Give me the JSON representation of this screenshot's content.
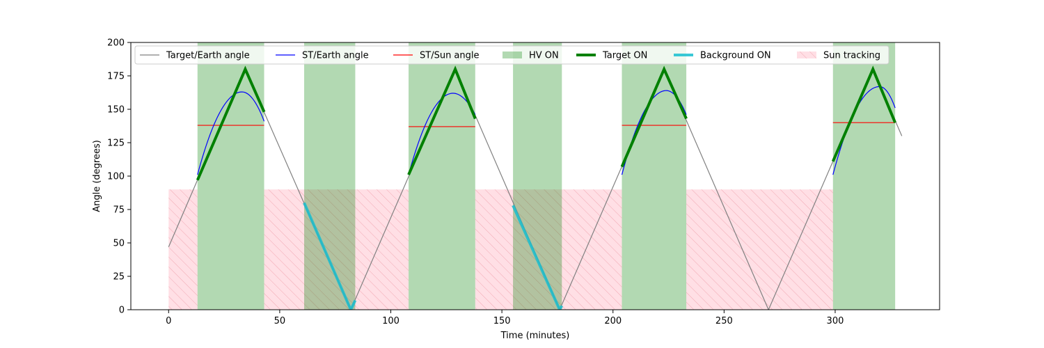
{
  "chart_data": {
    "type": "line",
    "title": "",
    "xlabel": "Time (minutes)",
    "ylabel": "Angle (degrees)",
    "xlim": [
      -17,
      347
    ],
    "ylim": [
      0,
      200
    ],
    "xticks": [
      0,
      50,
      100,
      150,
      200,
      250,
      300
    ],
    "yticks": [
      0,
      25,
      50,
      75,
      100,
      125,
      150,
      175,
      200
    ],
    "grid": false,
    "legend_position": "top",
    "legend": [
      {
        "key": "target_earth",
        "label": "Target/Earth angle",
        "kind": "line",
        "color": "#808080"
      },
      {
        "key": "st_earth",
        "label": "ST/Earth angle",
        "kind": "line",
        "color": "#0000ff"
      },
      {
        "key": "st_sun",
        "label": "ST/Sun angle",
        "kind": "line",
        "color": "#ff0000"
      },
      {
        "key": "hv_on",
        "label": "HV ON",
        "kind": "patch",
        "color": "#008000"
      },
      {
        "key": "target_on",
        "label": "Target ON",
        "kind": "thickline",
        "color": "#008000"
      },
      {
        "key": "background_on",
        "label": "Background ON",
        "kind": "thickline",
        "color": "#17becf"
      },
      {
        "key": "sun_tracking",
        "label": "Sun tracking",
        "kind": "hatch",
        "color": "#ffc0cb"
      }
    ],
    "hv_on_intervals": [
      [
        13,
        43
      ],
      [
        61,
        84
      ],
      [
        108,
        138
      ],
      [
        155,
        177
      ],
      [
        204,
        233
      ],
      [
        299,
        327
      ]
    ],
    "sun_tracking_intervals": [
      [
        0,
        13
      ],
      [
        43,
        108
      ],
      [
        138,
        204
      ],
      [
        233,
        299
      ]
    ],
    "sun_tracking_level": 90,
    "target_earth": {
      "x": [
        0,
        34.5,
        82,
        129,
        176,
        223,
        270,
        317,
        330
      ],
      "y": [
        47,
        180,
        0,
        180,
        0,
        180,
        0,
        180,
        130
      ]
    },
    "target_on_segments": [
      {
        "x": [
          13,
          34.5,
          43
        ],
        "y": [
          97,
          180,
          148
        ]
      },
      {
        "x": [
          108,
          129,
          138
        ],
        "y": [
          101,
          180,
          143
        ]
      },
      {
        "x": [
          204,
          223,
          233
        ],
        "y": [
          107,
          180,
          143
        ]
      },
      {
        "x": [
          299,
          317,
          327
        ],
        "y": [
          111,
          180,
          140
        ]
      }
    ],
    "background_on_segments": [
      {
        "x": [
          61,
          82,
          84
        ],
        "y": [
          80,
          0,
          7
        ]
      },
      {
        "x": [
          155,
          176,
          177
        ],
        "y": [
          78,
          0,
          3
        ]
      }
    ],
    "st_earth_segments": [
      {
        "peak_x": 33,
        "peak_y": 163,
        "x0": 13,
        "y0": 101,
        "x1": 43,
        "y1": 141
      },
      {
        "peak_x": 128,
        "peak_y": 162,
        "x0": 108,
        "y0": 101,
        "x1": 138,
        "y1": 146
      },
      {
        "peak_x": 224,
        "peak_y": 164,
        "x0": 204,
        "y0": 101,
        "x1": 233,
        "y1": 146
      },
      {
        "peak_x": 320,
        "peak_y": 167,
        "x0": 299,
        "y0": 101,
        "x1": 327,
        "y1": 151
      }
    ],
    "st_sun_segments": [
      {
        "x": [
          13,
          43
        ],
        "y": [
          138,
          138
        ]
      },
      {
        "x": [
          108,
          138
        ],
        "y": [
          137,
          137
        ]
      },
      {
        "x": [
          204,
          233
        ],
        "y": [
          138,
          138
        ]
      },
      {
        "x": [
          299,
          327
        ],
        "y": [
          140,
          140
        ]
      }
    ]
  }
}
